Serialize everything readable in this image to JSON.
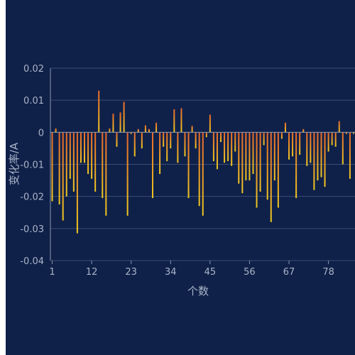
{
  "colors": {
    "panel_background": "#0f2149",
    "gridline": "#3b4d73",
    "axis_line": "#8a96ad",
    "text": "#aab4c8",
    "bar_top": "#e8662a",
    "bar_bottom": "#f0c820"
  },
  "chart_data": {
    "type": "bar",
    "xlabel": "个数",
    "ylabel": "变化率/A",
    "ylim": [
      -0.04,
      0.02
    ],
    "y_ticks": [
      "0.02",
      "0.01",
      "0",
      "-0.01",
      "-0.02",
      "-0.03",
      "-0.04"
    ],
    "x_ticks": [
      "1",
      "12",
      "23",
      "34",
      "45",
      "56",
      "67",
      "78"
    ],
    "grid": true,
    "x": [
      1,
      2,
      3,
      4,
      5,
      6,
      7,
      8,
      9,
      10,
      11,
      12,
      13,
      14,
      15,
      16,
      17,
      18,
      19,
      20,
      21,
      22,
      23,
      24,
      25,
      26,
      27,
      28,
      29,
      30,
      31,
      32,
      33,
      34,
      35,
      36,
      37,
      38,
      39,
      40,
      41,
      42,
      43,
      44,
      45,
      46,
      47,
      48,
      49,
      50,
      51,
      52,
      53,
      54,
      55,
      56,
      57,
      58,
      59,
      60,
      61,
      62,
      63,
      64,
      65,
      66,
      67,
      68,
      69,
      70,
      71,
      72,
      73,
      74,
      75,
      76,
      77,
      78,
      79,
      80,
      81,
      82,
      83,
      84,
      85
    ],
    "values": [
      -0.0215,
      0.0012,
      -0.0225,
      -0.0275,
      -0.02,
      -0.0145,
      -0.0185,
      -0.0315,
      -0.0095,
      -0.0095,
      -0.013,
      -0.0145,
      -0.0185,
      0.013,
      -0.0205,
      -0.026,
      0.0012,
      0.0058,
      -0.0045,
      0.0062,
      0.0095,
      -0.026,
      -0.0005,
      -0.0075,
      0.001,
      -0.005,
      0.0022,
      0.001,
      -0.0205,
      0.003,
      -0.013,
      -0.0045,
      -0.009,
      -0.005,
      0.0072,
      -0.0095,
      0.0075,
      -0.0075,
      -0.0205,
      0.002,
      -0.005,
      -0.023,
      -0.026,
      -0.0015,
      0.0055,
      -0.009,
      -0.0115,
      -0.003,
      -0.0095,
      -0.009,
      -0.0105,
      -0.006,
      -0.016,
      -0.019,
      -0.015,
      -0.015,
      -0.013,
      -0.0235,
      -0.0185,
      -0.004,
      -0.021,
      -0.028,
      -0.015,
      -0.0235,
      -0.002,
      0.003,
      -0.0085,
      -0.0075,
      -0.0205,
      -0.007,
      0.001,
      -0.0105,
      -0.0095,
      -0.018,
      -0.015,
      -0.014,
      -0.017,
      -0.006,
      -0.004,
      -0.0045,
      0.0035,
      -0.01,
      -0.0005,
      -0.0145,
      -0.0005
    ]
  }
}
